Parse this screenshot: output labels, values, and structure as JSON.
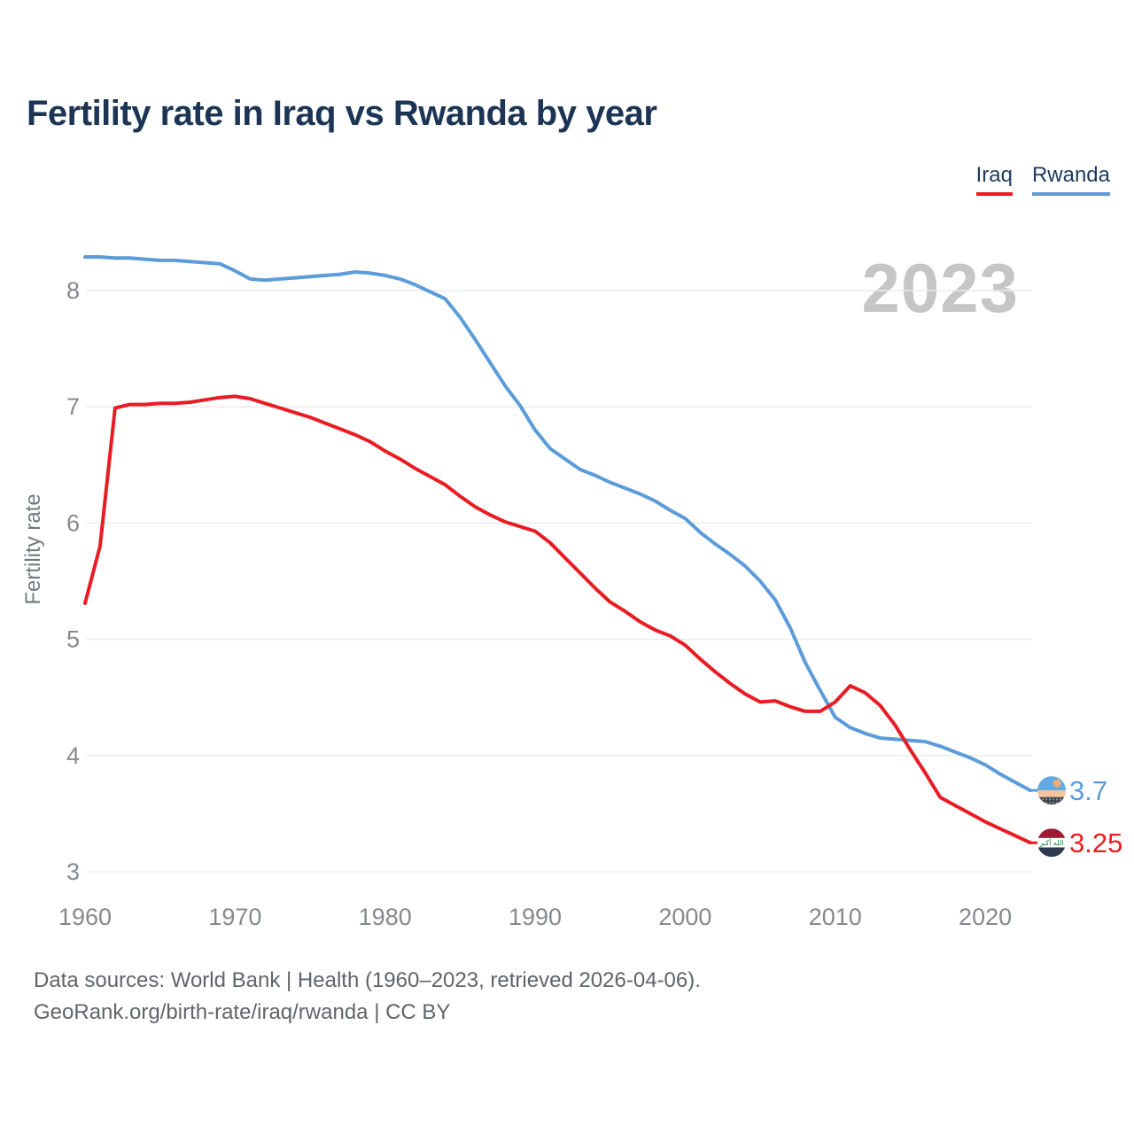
{
  "header": {
    "title": "Fertility rate in Iraq vs Rwanda by year"
  },
  "legend": {
    "items": [
      {
        "id": "iraq",
        "label": "Iraq",
        "color": "#e91c23"
      },
      {
        "id": "rwanda",
        "label": "Rwanda",
        "color": "#5b9cd9"
      }
    ]
  },
  "watermark": "2023",
  "end_labels": {
    "rwanda": "3.7",
    "iraq": "3.25"
  },
  "footer": {
    "line1": "Data sources: World Bank | Health (1960–2023, retrieved 2026-04-06).",
    "line2": "GeoRank.org/birth-rate/iraq/rwanda | CC BY"
  },
  "chart_data": {
    "type": "line",
    "title": "Fertility rate in Iraq vs Rwanda by year",
    "xlabel": "",
    "ylabel": "Fertility rate",
    "xlim": [
      1960,
      2023
    ],
    "ylim": [
      3,
      8.4
    ],
    "grid": "horizontal",
    "legend_position": "top-right",
    "xticks": [
      1960,
      1970,
      1980,
      1990,
      2000,
      2010,
      2020
    ],
    "yticks": [
      3,
      4,
      5,
      6,
      7,
      8
    ],
    "x": [
      1960,
      1961,
      1962,
      1963,
      1964,
      1965,
      1966,
      1967,
      1968,
      1969,
      1970,
      1971,
      1972,
      1973,
      1974,
      1975,
      1976,
      1977,
      1978,
      1979,
      1980,
      1981,
      1982,
      1983,
      1984,
      1985,
      1986,
      1987,
      1988,
      1989,
      1990,
      1991,
      1992,
      1993,
      1994,
      1995,
      1996,
      1997,
      1998,
      1999,
      2000,
      2001,
      2002,
      2003,
      2004,
      2005,
      2006,
      2007,
      2008,
      2009,
      2010,
      2011,
      2012,
      2013,
      2014,
      2015,
      2016,
      2017,
      2018,
      2019,
      2020,
      2021,
      2022,
      2023
    ],
    "series": [
      {
        "name": "Iraq",
        "color": "#e91c23",
        "values": [
          5.31,
          5.8,
          6.99,
          7.02,
          7.02,
          7.03,
          7.03,
          7.04,
          7.06,
          7.08,
          7.09,
          7.07,
          7.03,
          6.99,
          6.95,
          6.91,
          6.86,
          6.81,
          6.76,
          6.7,
          6.62,
          6.55,
          6.47,
          6.4,
          6.33,
          6.23,
          6.14,
          6.07,
          6.01,
          5.97,
          5.93,
          5.83,
          5.7,
          5.57,
          5.44,
          5.32,
          5.24,
          5.15,
          5.08,
          5.03,
          4.95,
          4.83,
          4.72,
          4.62,
          4.53,
          4.46,
          4.47,
          4.42,
          4.38,
          4.38,
          4.46,
          4.6,
          4.54,
          4.43,
          4.26,
          4.05,
          3.85,
          3.64,
          3.57,
          3.5,
          3.43,
          3.37,
          3.31,
          3.25
        ]
      },
      {
        "name": "Rwanda",
        "color": "#5b9cd9",
        "values": [
          8.29,
          8.29,
          8.28,
          8.28,
          8.27,
          8.26,
          8.26,
          8.25,
          8.24,
          8.23,
          8.17,
          8.1,
          8.09,
          8.1,
          8.11,
          8.12,
          8.13,
          8.14,
          8.16,
          8.15,
          8.13,
          8.1,
          8.05,
          7.99,
          7.93,
          7.77,
          7.58,
          7.38,
          7.18,
          7.01,
          6.8,
          6.64,
          6.55,
          6.46,
          6.41,
          6.35,
          6.3,
          6.25,
          6.19,
          6.11,
          6.04,
          5.92,
          5.82,
          5.73,
          5.63,
          5.5,
          5.34,
          5.1,
          4.8,
          4.56,
          4.33,
          4.24,
          4.19,
          4.15,
          4.14,
          4.13,
          4.12,
          4.08,
          4.03,
          3.98,
          3.92,
          3.84,
          3.77,
          3.7
        ]
      }
    ],
    "end_values": {
      "Iraq": 3.25,
      "Rwanda": 3.7
    }
  }
}
